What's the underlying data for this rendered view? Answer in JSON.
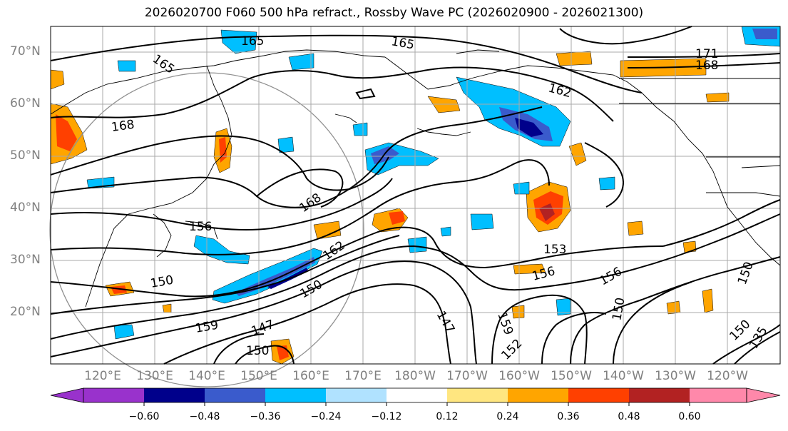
{
  "title": "2026020700 F060 500 hPa refract., Rossby Wave PC (2026020900 - 2026021300)",
  "lat_labels": [
    "70°N",
    "60°N",
    "50°N",
    "40°N",
    "30°N",
    "20°N"
  ],
  "lon_labels": [
    "120°E",
    "130°E",
    "140°E",
    "150°E",
    "160°E",
    "170°E",
    "180°W",
    "170°W",
    "160°W",
    "150°W",
    "140°W",
    "130°W",
    "120°W"
  ],
  "colorbar": {
    "ticks": [
      "−0.60",
      "−0.48",
      "−0.36",
      "−0.24",
      "−0.12",
      "0.12",
      "0.24",
      "0.36",
      "0.48",
      "0.60"
    ],
    "colors": [
      "#9932cc",
      "#00008b",
      "#3a5bcc",
      "#00bfff",
      "#b0e2ff",
      "#ffffff",
      "#ffe680",
      "#ffa500",
      "#ff4000",
      "#b22222",
      "#ff88aa"
    ]
  },
  "contour_labels": [
    "165",
    "165",
    "165",
    "171",
    "168",
    "162",
    "168",
    "168",
    "156",
    "150",
    "153",
    "156",
    "156",
    "150",
    "147",
    "147",
    "150",
    "159",
    "159",
    "150",
    "162",
    "150",
    "152",
    "150",
    "135"
  ]
}
